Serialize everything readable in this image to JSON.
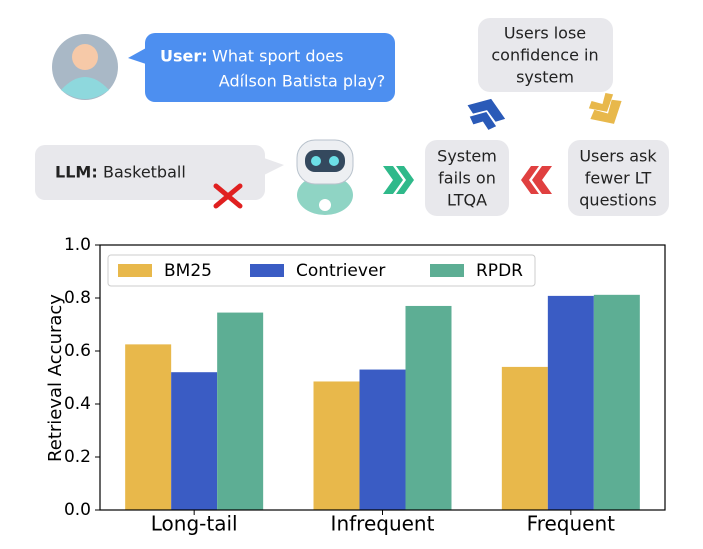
{
  "diagram": {
    "user_label": "User:",
    "user_question": [
      "What sport does",
      "Adílson Batista play?"
    ],
    "llm_label": "LLM:",
    "llm_answer": "Basketball",
    "system_box": [
      "System",
      "fails on",
      "LTQA"
    ],
    "users_ask_box": [
      "Users ask",
      "fewer LT",
      "questions"
    ],
    "confidence_box": [
      "Users lose",
      "confidence in",
      "system"
    ]
  },
  "chart_data": {
    "type": "bar",
    "ylabel": "Retrieval Accuracy",
    "categories": [
      "Long-tail",
      "Infrequent",
      "Frequent"
    ],
    "series": [
      {
        "name": "BM25",
        "color": "#E8B84B",
        "values": [
          0.625,
          0.485,
          0.54
        ]
      },
      {
        "name": "Contriever",
        "color": "#3A5CC4",
        "values": [
          0.52,
          0.53,
          0.808
        ]
      },
      {
        "name": "RPDR",
        "color": "#5DAE94",
        "values": [
          0.745,
          0.77,
          0.812
        ]
      }
    ],
    "ylim": [
      0,
      1
    ],
    "yticks": [
      {
        "value": 0,
        "label": "0.0"
      },
      0.2,
      0.4,
      0.6,
      0.8,
      {
        "value": 1,
        "label": "1.0"
      }
    ],
    "legend": "upper left"
  }
}
